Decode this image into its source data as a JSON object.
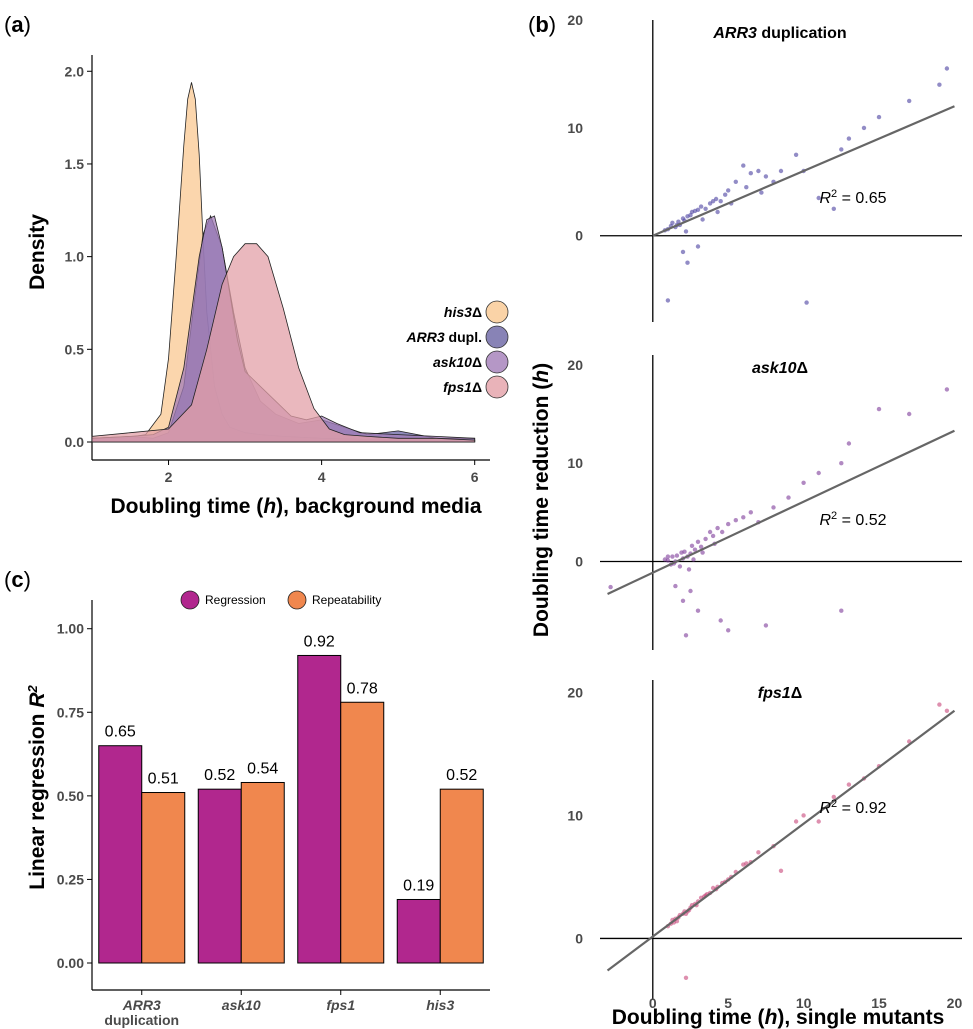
{
  "panels": {
    "a": "a",
    "b": "b",
    "c": "c"
  },
  "chart_data": [
    {
      "type": "area",
      "panel": "a",
      "xlabel": "Doubling time (h), background media",
      "ylabel": "Density",
      "xlim": [
        1,
        6.2
      ],
      "ylim": [
        0,
        2.05
      ],
      "xticks": [
        2,
        4,
        6
      ],
      "yticks": [
        0.0,
        0.5,
        1.0,
        1.5,
        2.0
      ],
      "ytick_labels": [
        "0.0",
        "0.5",
        "1.0",
        "1.5",
        "2.0"
      ],
      "series": [
        {
          "name": "his3Δ",
          "name_italic": "his3",
          "name_suffix": "Δ",
          "color": "#f9c891",
          "x": [
            1.0,
            1.4,
            1.7,
            1.9,
            2.0,
            2.1,
            2.2,
            2.25,
            2.3,
            2.35,
            2.4,
            2.45,
            2.5,
            2.6,
            2.7,
            2.8,
            3.0,
            3.2,
            3.5,
            4.0,
            5.0,
            6.0
          ],
          "y": [
            0.02,
            0.02,
            0.04,
            0.15,
            0.45,
            1.0,
            1.6,
            1.85,
            1.94,
            1.85,
            1.55,
            1.1,
            0.7,
            0.3,
            0.15,
            0.08,
            0.05,
            0.04,
            0.03,
            0.02,
            0.01,
            0.01
          ]
        },
        {
          "name": "ARR3 dupl.",
          "name_italic": "ARR3",
          "name_suffix": " dupl.",
          "color": "#6a64a4",
          "x": [
            1.0,
            1.5,
            1.8,
            2.0,
            2.2,
            2.35,
            2.45,
            2.55,
            2.7,
            2.85,
            3.0,
            3.2,
            3.4,
            3.7,
            4.0,
            4.3,
            4.6,
            5.0,
            5.5,
            6.0
          ],
          "y": [
            0.02,
            0.03,
            0.02,
            0.05,
            0.3,
            0.8,
            1.12,
            1.22,
            1.05,
            0.7,
            0.4,
            0.22,
            0.15,
            0.1,
            0.12,
            0.08,
            0.04,
            0.06,
            0.02,
            0.02
          ]
        },
        {
          "name": "ask10Δ",
          "name_italic": "ask10",
          "name_suffix": "Δ",
          "color": "#a37db8",
          "x": [
            1.0,
            1.5,
            1.8,
            2.0,
            2.2,
            2.4,
            2.5,
            2.6,
            2.7,
            2.8,
            2.9,
            3.0,
            3.2,
            3.4,
            3.6,
            3.8,
            4.0,
            4.2,
            4.5,
            5.0,
            5.5,
            6.0
          ],
          "y": [
            0.02,
            0.03,
            0.04,
            0.08,
            0.4,
            1.0,
            1.2,
            1.22,
            1.05,
            0.8,
            0.55,
            0.38,
            0.3,
            0.22,
            0.14,
            0.12,
            0.14,
            0.1,
            0.05,
            0.04,
            0.03,
            0.02
          ]
        },
        {
          "name": "fps1Δ",
          "name_italic": "fps1",
          "name_suffix": "Δ",
          "color": "#e3a0a8",
          "x": [
            1.0,
            1.5,
            2.0,
            2.3,
            2.5,
            2.7,
            2.85,
            3.0,
            3.15,
            3.3,
            3.5,
            3.7,
            3.9,
            4.1,
            4.3,
            4.6,
            5.0,
            5.5,
            6.0
          ],
          "y": [
            0.03,
            0.05,
            0.07,
            0.2,
            0.5,
            0.85,
            1.0,
            1.07,
            1.07,
            1.0,
            0.72,
            0.4,
            0.18,
            0.07,
            0.04,
            0.03,
            0.02,
            0.02,
            0.01
          ]
        }
      ]
    },
    {
      "type": "scatter",
      "panel": "b",
      "xlabel": "Doubling time (h), single mutants",
      "ylabel": "Doubling time reduction (h)",
      "xlim": [
        -3.5,
        20.5
      ],
      "xticks": [
        0,
        5,
        10,
        15,
        20
      ],
      "yticks": [
        0,
        10,
        20
      ],
      "subplots": [
        {
          "title_italic": "ARR3",
          "title_suffix": " duplication",
          "r2_value": "0.65",
          "color": "#4a3fa0",
          "ylim": [
            -8,
            20
          ],
          "line": [
            [
              0,
              0
            ],
            [
              20,
              12
            ]
          ],
          "points": [
            [
              0.8,
              0.5
            ],
            [
              1.0,
              0.6
            ],
            [
              1.2,
              0.9
            ],
            [
              1.3,
              1.2
            ],
            [
              1.5,
              0.8
            ],
            [
              1.7,
              1.3
            ],
            [
              1.8,
              1.0
            ],
            [
              2.0,
              1.6
            ],
            [
              2.1,
              1.4
            ],
            [
              2.3,
              1.8
            ],
            [
              2.5,
              1.9
            ],
            [
              2.6,
              2.2
            ],
            [
              2.8,
              2.3
            ],
            [
              3.0,
              2.4
            ],
            [
              3.2,
              2.7
            ],
            [
              3.5,
              2.5
            ],
            [
              3.8,
              3.0
            ],
            [
              4.0,
              3.2
            ],
            [
              4.2,
              3.4
            ],
            [
              4.5,
              3.2
            ],
            [
              4.8,
              3.8
            ],
            [
              5.0,
              4.2
            ],
            [
              5.5,
              5.0
            ],
            [
              6.0,
              6.5
            ],
            [
              6.5,
              5.8
            ],
            [
              7.0,
              6.0
            ],
            [
              7.5,
              5.5
            ],
            [
              8.0,
              5.0
            ],
            [
              9.5,
              7.5
            ],
            [
              10.0,
              6.0
            ],
            [
              11.0,
              3.5
            ],
            [
              12.0,
              2.5
            ],
            [
              13.0,
              9.0
            ],
            [
              14.0,
              10.0
            ],
            [
              15.0,
              11.0
            ],
            [
              17.0,
              12.5
            ],
            [
              19.0,
              14.0
            ],
            [
              19.5,
              15.5
            ],
            [
              2.0,
              -1.5
            ],
            [
              2.3,
              -2.5
            ],
            [
              3.0,
              -1.0
            ],
            [
              1.0,
              -6.0
            ],
            [
              10.2,
              -6.2
            ],
            [
              1.6,
              1.0
            ],
            [
              2.2,
              0.4
            ],
            [
              3.3,
              1.5
            ],
            [
              4.3,
              2.2
            ],
            [
              5.2,
              3.0
            ],
            [
              6.2,
              4.5
            ],
            [
              7.2,
              4.0
            ],
            [
              8.5,
              6.0
            ],
            [
              12.5,
              8.0
            ]
          ]
        },
        {
          "title_italic": "ask10",
          "title_suffix": "Δ",
          "r2_value": "0.52",
          "color": "#7d3a9a",
          "ylim": [
            -9,
            21
          ],
          "line": [
            [
              -3,
              -3.3
            ],
            [
              20,
              13.3
            ]
          ],
          "points": [
            [
              0.8,
              0.2
            ],
            [
              1.0,
              0.1
            ],
            [
              1.2,
              -0.3
            ],
            [
              1.3,
              0.5
            ],
            [
              1.5,
              0.0
            ],
            [
              1.6,
              0.6
            ],
            [
              1.8,
              -0.5
            ],
            [
              2.0,
              0.3
            ],
            [
              2.1,
              1.0
            ],
            [
              2.3,
              0.5
            ],
            [
              2.5,
              0.8
            ],
            [
              2.6,
              1.6
            ],
            [
              2.8,
              1.2
            ],
            [
              3.0,
              2.0
            ],
            [
              3.2,
              1.5
            ],
            [
              3.5,
              2.3
            ],
            [
              3.8,
              3.0
            ],
            [
              4.0,
              2.6
            ],
            [
              4.3,
              3.4
            ],
            [
              4.6,
              3.0
            ],
            [
              5.0,
              3.8
            ],
            [
              5.5,
              4.2
            ],
            [
              6.0,
              4.5
            ],
            [
              6.5,
              5.0
            ],
            [
              7.0,
              4.0
            ],
            [
              8.0,
              5.5
            ],
            [
              9.0,
              6.5
            ],
            [
              10.0,
              8.0
            ],
            [
              11.0,
              9.0
            ],
            [
              12.5,
              10.0
            ],
            [
              13.0,
              12.0
            ],
            [
              15.0,
              15.5
            ],
            [
              17.0,
              15.0
            ],
            [
              19.5,
              17.5
            ],
            [
              1.5,
              -2.5
            ],
            [
              2.0,
              -4.0
            ],
            [
              2.5,
              -3.0
            ],
            [
              3.0,
              -5.0
            ],
            [
              4.5,
              -6.0
            ],
            [
              5.0,
              -7.0
            ],
            [
              2.2,
              -7.5
            ],
            [
              7.5,
              -6.5
            ],
            [
              12.5,
              -5.0
            ],
            [
              1.0,
              0.5
            ],
            [
              1.4,
              -0.2
            ],
            [
              1.9,
              0.9
            ],
            [
              2.4,
              -0.8
            ],
            [
              2.7,
              0.2
            ],
            [
              3.3,
              0.9
            ],
            [
              4.1,
              1.8
            ],
            [
              -2.8,
              -2.6
            ]
          ]
        },
        {
          "title_italic": "fps1",
          "title_suffix": "Δ",
          "r2_value": "0.92",
          "color": "#c8467a",
          "ylim": [
            -5,
            21
          ],
          "line": [
            [
              -3,
              -2.6
            ],
            [
              20,
              18.5
            ]
          ],
          "points": [
            [
              1.0,
              1.0
            ],
            [
              1.2,
              1.2
            ],
            [
              1.4,
              1.3
            ],
            [
              1.5,
              1.6
            ],
            [
              1.7,
              1.7
            ],
            [
              1.8,
              1.9
            ],
            [
              2.0,
              2.0
            ],
            [
              2.1,
              2.2
            ],
            [
              2.3,
              2.2
            ],
            [
              2.5,
              2.5
            ],
            [
              2.6,
              2.7
            ],
            [
              2.8,
              2.8
            ],
            [
              3.0,
              3.0
            ],
            [
              3.2,
              3.3
            ],
            [
              3.5,
              3.5
            ],
            [
              3.8,
              3.7
            ],
            [
              4.0,
              4.1
            ],
            [
              4.3,
              4.2
            ],
            [
              4.6,
              4.5
            ],
            [
              5.0,
              4.8
            ],
            [
              5.5,
              5.4
            ],
            [
              6.0,
              6.0
            ],
            [
              6.5,
              6.2
            ],
            [
              7.0,
              7.0
            ],
            [
              8.0,
              7.5
            ],
            [
              8.5,
              5.5
            ],
            [
              9.5,
              9.5
            ],
            [
              10.0,
              10.0
            ],
            [
              11.0,
              9.5
            ],
            [
              12.0,
              11.5
            ],
            [
              13.0,
              12.5
            ],
            [
              14.0,
              13.0
            ],
            [
              15.0,
              14.0
            ],
            [
              17.0,
              16.0
            ],
            [
              19.0,
              19.0
            ],
            [
              19.5,
              18.5
            ],
            [
              2.2,
              -3.2
            ],
            [
              1.6,
              1.4
            ],
            [
              2.2,
              2.0
            ],
            [
              2.9,
              2.7
            ],
            [
              3.4,
              3.4
            ],
            [
              4.2,
              4.0
            ],
            [
              5.2,
              5.0
            ],
            [
              1.3,
              1.5
            ],
            [
              2.4,
              2.3
            ],
            [
              3.6,
              3.6
            ],
            [
              4.8,
              4.6
            ],
            [
              6.2,
              6.1
            ]
          ]
        }
      ]
    },
    {
      "type": "bar",
      "panel": "c",
      "ylabel": "Linear regression R²",
      "ylabel_text": "Linear regression ",
      "ylabel_r2": "R²",
      "ylim": [
        0,
        1.05
      ],
      "yticks": [
        "0.00",
        "0.25",
        "0.50",
        "0.75",
        "1.00"
      ],
      "categories": [
        {
          "label": "ARR3",
          "italic": true,
          "sublabel": "duplication"
        },
        {
          "label": "ask10",
          "italic": true,
          "sublabel": ""
        },
        {
          "label": "fps1",
          "italic": true,
          "sublabel": ""
        },
        {
          "label": "his3",
          "italic": true,
          "sublabel": ""
        }
      ],
      "series": [
        {
          "name": "Regression",
          "color": "#b1278e",
          "values": [
            0.65,
            0.52,
            0.92,
            0.19
          ],
          "labels": [
            "0.65",
            "0.52",
            "0.92",
            "0.19"
          ]
        },
        {
          "name": "Repeatability",
          "color": "#f0874e",
          "values": [
            0.51,
            0.54,
            0.78,
            0.52
          ],
          "labels": [
            "0.51",
            "0.54",
            "0.78",
            "0.52"
          ]
        }
      ],
      "legend_position": "top"
    }
  ]
}
